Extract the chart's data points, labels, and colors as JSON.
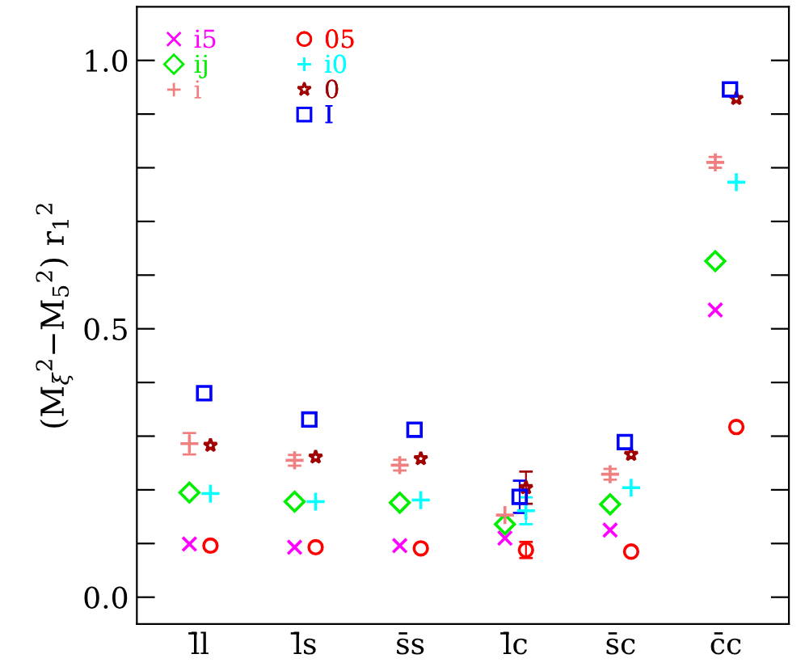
{
  "chart_data": {
    "type": "scatter",
    "ylabel": "(M$_{ξ}$$^{2}$−M$_{5}$$^{2}$) r$_{1}$$^{2}$",
    "categories": [
      "l̄l",
      "l̄s",
      "s̄s",
      "l̄c",
      "s̄c",
      "c̄c"
    ],
    "ylim": [
      -0.05,
      1.1
    ],
    "yticks": [
      {
        "value": 0.0,
        "label": "0.0"
      },
      {
        "value": 0.1,
        "label": null
      },
      {
        "value": 0.2,
        "label": null
      },
      {
        "value": 0.3,
        "label": null
      },
      {
        "value": 0.4,
        "label": null
      },
      0.5,
      {
        "value": 0.6,
        "label": null
      },
      {
        "value": 0.7,
        "label": null
      },
      {
        "value": 0.8,
        "label": null
      },
      {
        "value": 0.9,
        "label": null
      },
      {
        "value": 1.0,
        "label": "1.0"
      }
    ],
    "legend": "top left",
    "grid": false,
    "series": [
      {
        "name": "i5",
        "color": "#ff00ff",
        "marker": "cross",
        "values": [
          0.099,
          0.093,
          0.096,
          0.11,
          0.125,
          0.535
        ]
      },
      {
        "name": "ij",
        "color": "#00ee00",
        "marker": "diamond",
        "values": [
          0.195,
          0.178,
          0.176,
          0.136,
          0.173,
          0.626
        ]
      },
      {
        "name": "i",
        "color": "#f08080",
        "marker": "plus",
        "values": [
          0.286,
          0.255,
          0.246,
          0.153,
          0.229,
          0.81
        ],
        "errors": [
          0.02,
          0.01,
          0.01,
          null,
          0.01,
          0.01
        ]
      },
      {
        "name": "05",
        "color": "#ff0000",
        "marker": "circle",
        "values": [
          0.096,
          0.093,
          0.091,
          0.088,
          0.085,
          0.317
        ],
        "errors": [
          null,
          null,
          null,
          0.015,
          null,
          null
        ]
      },
      {
        "name": "i0",
        "color": "#00ffff",
        "marker": "plus",
        "values": [
          0.193,
          0.178,
          0.181,
          0.161,
          0.204,
          0.773
        ],
        "errors": [
          null,
          null,
          null,
          0.025,
          null,
          null
        ]
      },
      {
        "name": "0",
        "color": "#a00000",
        "marker": "star",
        "values": [
          0.283,
          0.261,
          0.258,
          0.204,
          0.266,
          0.929
        ],
        "errors": [
          null,
          null,
          null,
          0.03,
          null,
          null
        ]
      },
      {
        "name": "I",
        "color": "#0000ff",
        "marker": "square",
        "values": [
          0.38,
          0.331,
          0.312,
          0.187,
          0.289,
          0.946
        ],
        "errors": [
          null,
          null,
          null,
          0.03,
          null,
          null
        ]
      }
    ]
  }
}
